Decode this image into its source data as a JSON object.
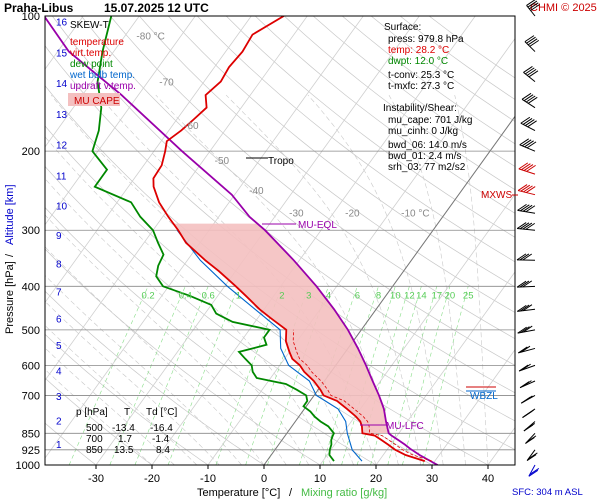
{
  "header": {
    "station": "Praha-Libus",
    "datetime": "15.07.2025 12 UTC",
    "copyright": "CHMI © 2025"
  },
  "legend": {
    "title": "SKEW-T",
    "items": [
      {
        "label": "temperature",
        "color": "#dd0000"
      },
      {
        "label": "virt.temp.",
        "color": "#dd0000"
      },
      {
        "label": "dew point",
        "color": "#008800"
      },
      {
        "label": "wet bulb temp.",
        "color": "#0066cc"
      },
      {
        "label": "updraft v.temp.",
        "color": "#9900aa"
      }
    ],
    "cape_badge": "MU CAPE"
  },
  "surface": {
    "heading": "Surface:",
    "press": "press: 979.8 hPa",
    "temp": "temp: 28.2 °C",
    "dwpt": "dwpt: 12.0 °C",
    "tconv": "t-conv: 25.3 °C",
    "tmxfc": "t-mxfc: 27.3 °C"
  },
  "instability": {
    "heading": "Instability/Shear:",
    "mu_cape": "mu_cape: 701 J/kg",
    "mu_cinh": "mu_cinh: 0 J/kg",
    "bwd_06": "bwd_06: 14.0 m/s",
    "bwd_01": "bwd_01: 2.4 m/s",
    "srh_03": "srh_03: 77 m2/s2"
  },
  "levels_table": {
    "headers": [
      "p [hPa]",
      "T",
      "Td [°C]"
    ],
    "rows": [
      [
        "500",
        "-13.4",
        "-16.4"
      ],
      [
        "700",
        "1.7",
        "-1.4"
      ],
      [
        "850",
        "13.5",
        "8.4"
      ]
    ]
  },
  "annotations": {
    "tropo": "Tropo",
    "mu_eql": "MU-EQL",
    "mu_lfc": "MU-LFC",
    "mxws": "MXWS",
    "wbzl": "WBZL",
    "sfc": "SFC: 304 m ASL"
  },
  "axes": {
    "xlabel_temp": "Temperature [°C]",
    "xlabel_sep": "/",
    "xlabel_mix": "Mixing ratio [g/kg]",
    "ylabel_p": "Pressure [hPa]",
    "ylabel_sep": "/",
    "ylabel_alt": "Altitude [km]"
  },
  "colors": {
    "temperature": "#dd0000",
    "dewpoint": "#008800",
    "wetbulb": "#0066cc",
    "parcel": "#9900aa",
    "cape_fill": "#f4c0c0",
    "mixing": "#88dd88",
    "dry_adiabat": "#c8c8c8",
    "moist_adiabat": "#c8c8c8"
  },
  "chart_data": {
    "type": "line",
    "xlim": [
      -35,
      45
    ],
    "ylim_hpa": [
      1000,
      100
    ],
    "x_ticks": [
      -30,
      -20,
      -10,
      0,
      10,
      20,
      30,
      40
    ],
    "p_ticks": [
      100,
      200,
      300,
      400,
      500,
      600,
      700,
      850,
      925,
      1000
    ],
    "alt_ticks_km": [
      1,
      2,
      3,
      4,
      5,
      6,
      7,
      8,
      9,
      10,
      11,
      12,
      13,
      14,
      15,
      16
    ],
    "isotherm_labels": [
      {
        "t": -80,
        "label": "-80 °C"
      },
      {
        "t": -70,
        "label": "-70"
      },
      {
        "t": -60,
        "label": "-60"
      },
      {
        "t": -50,
        "label": "-50"
      },
      {
        "t": -40,
        "label": "-40"
      },
      {
        "t": -30,
        "label": "-30"
      },
      {
        "t": -20,
        "label": "-20"
      },
      {
        "t": -10,
        "label": "-10 °C"
      }
    ],
    "mixing_ratios": [
      0.2,
      0.4,
      0.6,
      1,
      2,
      3,
      4,
      6,
      8,
      10,
      12,
      14,
      17,
      20,
      25
    ],
    "mixing_label_text": [
      "0.2",
      "0.4",
      "0.6",
      "1",
      "2",
      "3",
      "4",
      "6",
      "8",
      "10",
      "12",
      "14",
      "17",
      "20",
      "25"
    ],
    "series": [
      {
        "name": "temperature",
        "p": [
          980,
          950,
          925,
          900,
          880,
          860,
          850,
          820,
          800,
          780,
          750,
          720,
          700,
          680,
          650,
          620,
          600,
          580,
          560,
          530,
          500,
          470,
          450,
          420,
          400,
          370,
          350,
          320,
          300,
          280,
          260,
          240,
          230,
          215,
          200,
          190,
          180,
          170,
          160,
          150,
          140,
          130,
          120,
          110,
          100
        ],
        "t": [
          28.2,
          24.0,
          21.5,
          19.5,
          17.8,
          16.0,
          13.5,
          12.5,
          11.6,
          10.2,
          7.6,
          4.8,
          1.7,
          0.4,
          -1.9,
          -4.8,
          -6.4,
          -8.6,
          -10.0,
          -12.0,
          -13.4,
          -17.8,
          -20.8,
          -25.0,
          -28.0,
          -33.0,
          -36.8,
          -42.5,
          -45.5,
          -49.0,
          -52.5,
          -55.5,
          -56.6,
          -56.8,
          -58.0,
          -59.0,
          -57.8,
          -57.0,
          -56.2,
          -58.0,
          -57.0,
          -57.4,
          -57.0,
          -57.4,
          -54.2
        ]
      },
      {
        "name": "dew point",
        "p": [
          980,
          950,
          925,
          900,
          880,
          860,
          850,
          820,
          800,
          780,
          760,
          740,
          720,
          700,
          680,
          660,
          640,
          620,
          600,
          580,
          560,
          540,
          520,
          500,
          480,
          460,
          440,
          420,
          400,
          380,
          360,
          340,
          320,
          300,
          280,
          260,
          240,
          220,
          200,
          180,
          160,
          140,
          120,
          100
        ],
        "t": [
          12.0,
          10.4,
          9.8,
          9.4,
          8.8,
          8.5,
          8.4,
          6.5,
          4.5,
          2.8,
          1.4,
          -0.5,
          -0.5,
          -1.4,
          -3.8,
          -6.5,
          -12.5,
          -14.0,
          -15.0,
          -17.0,
          -19.0,
          -15.0,
          -16.4,
          -16.4,
          -24.0,
          -28.0,
          -30.0,
          -35.0,
          -41.0,
          -43.5,
          -44.5,
          -45.0,
          -47.5,
          -50.0,
          -54.0,
          -57.5,
          -66.0,
          -66.0,
          -71.0,
          -72.5,
          -75.0,
          -79.0,
          -82.0,
          -85.0
        ]
      },
      {
        "name": "wet bulb temp.",
        "p": [
          980,
          925,
          850,
          800,
          750,
          700,
          650,
          600,
          550,
          500,
          450,
          400,
          350,
          300
        ],
        "t": [
          17.0,
          13.8,
          10.8,
          9.0,
          6.0,
          0.4,
          -2.7,
          -8.4,
          -12.0,
          -14.5,
          -21.6,
          -29.5,
          -37.7,
          -45.7
        ]
      },
      {
        "name": "updraft v.temp.",
        "p": [
          1000,
          950,
          920,
          900,
          880,
          860,
          850,
          800,
          750,
          700,
          650,
          600,
          550,
          500,
          450,
          400,
          350,
          300,
          280,
          250,
          200,
          150,
          120,
          100
        ],
        "t": [
          31.0,
          26.5,
          24.0,
          22.5,
          20.8,
          19.0,
          18.2,
          16.2,
          14.2,
          11.6,
          8.6,
          5.4,
          1.8,
          -2.4,
          -7.5,
          -13.6,
          -21.0,
          -30.0,
          -34.5,
          -40.5,
          -55.0,
          -73.0,
          -88.0,
          -97.0
        ]
      }
    ]
  }
}
